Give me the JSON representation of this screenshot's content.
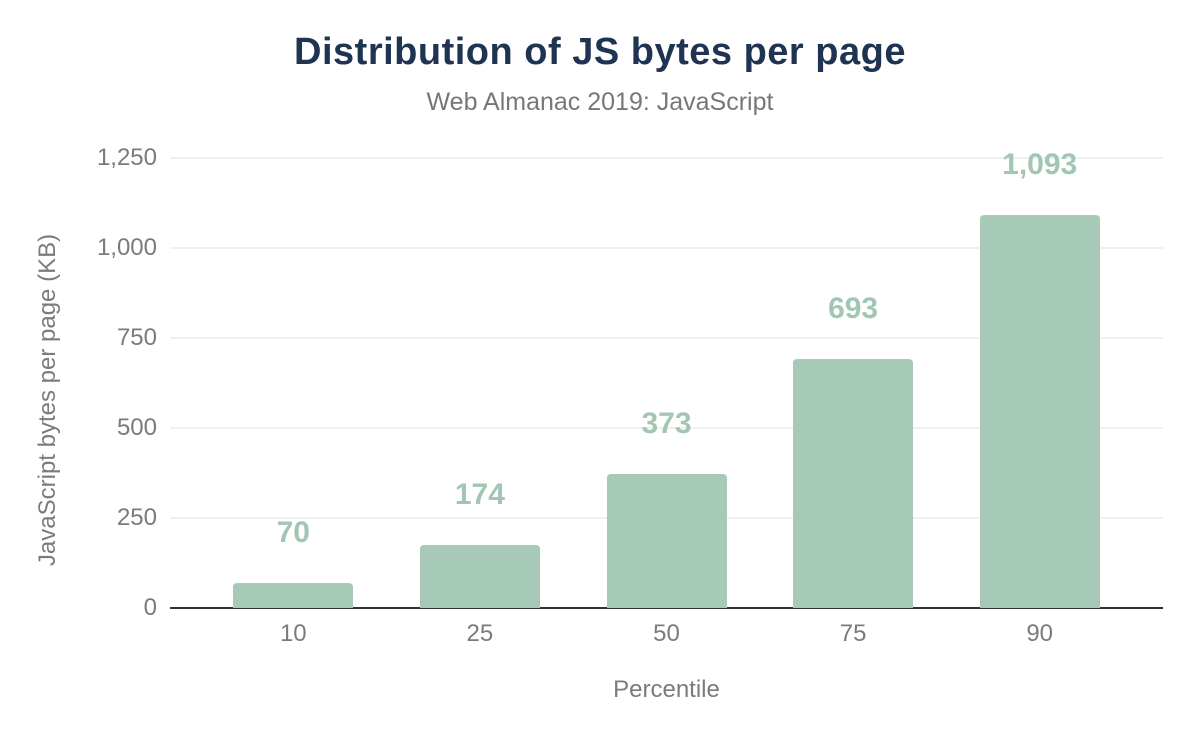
{
  "chart": {
    "title": "Distribution of JS bytes per page",
    "subtitle": "Web Almanac 2019: JavaScript",
    "ylabel": "JavaScript bytes per page (KB)",
    "xlabel": "Percentile"
  },
  "chart_data": {
    "type": "bar",
    "title": "Distribution of JS bytes per page",
    "subtitle": "Web Almanac 2019: JavaScript",
    "categories": [
      "10",
      "25",
      "50",
      "75",
      "90"
    ],
    "values": [
      70,
      174,
      373,
      693,
      1093
    ],
    "value_labels": [
      "70",
      "174",
      "373",
      "693",
      "1,093"
    ],
    "xlabel": "Percentile",
    "ylabel": "JavaScript bytes per page (KB)",
    "ylim": [
      0,
      1250
    ],
    "yticks": [
      0,
      250,
      500,
      750,
      1000,
      1250
    ],
    "ytick_labels": [
      "0",
      "250",
      "500",
      "750",
      "1,000",
      "1,250"
    ],
    "grid": "horizontal-only",
    "legend": "none",
    "bar_series_name": "JavaScript bytes per page (KB)"
  },
  "colors": {
    "background": "#ffffff",
    "title": "#1f3352",
    "subtitle": "#777777",
    "axis_text": "#7b7b7b",
    "bar": "#a7c9b8",
    "data_label": "#a3c6b3",
    "gridline": "#eff1f0",
    "axis_line": "#333333"
  }
}
